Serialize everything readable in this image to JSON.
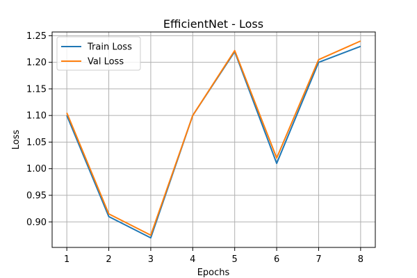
{
  "chart_data": {
    "type": "line",
    "title": "EfficientNet - Loss",
    "xlabel": "Epochs",
    "ylabel": "Loss",
    "x": [
      1,
      2,
      3,
      4,
      5,
      6,
      7,
      8
    ],
    "xticks": [
      "1",
      "2",
      "3",
      "4",
      "5",
      "6",
      "7",
      "8"
    ],
    "yticks": [
      "0.90",
      "0.95",
      "1.00",
      "1.05",
      "1.10",
      "1.15",
      "1.20",
      "1.25"
    ],
    "ytick_values": [
      0.9,
      0.95,
      1.0,
      1.05,
      1.1,
      1.15,
      1.2,
      1.25
    ],
    "xlim": [
      0.65,
      8.35
    ],
    "ylim": [
      0.852,
      1.257
    ],
    "grid": true,
    "legend_position": "top-left",
    "series": [
      {
        "name": "Train Loss",
        "color": "#1f77b4",
        "values": [
          1.1,
          0.91,
          0.87,
          1.1,
          1.22,
          1.01,
          1.2,
          1.23
        ]
      },
      {
        "name": "Val Loss",
        "color": "#ff7f0e",
        "values": [
          1.105,
          0.915,
          0.875,
          1.1,
          1.222,
          1.02,
          1.205,
          1.24
        ]
      }
    ]
  }
}
